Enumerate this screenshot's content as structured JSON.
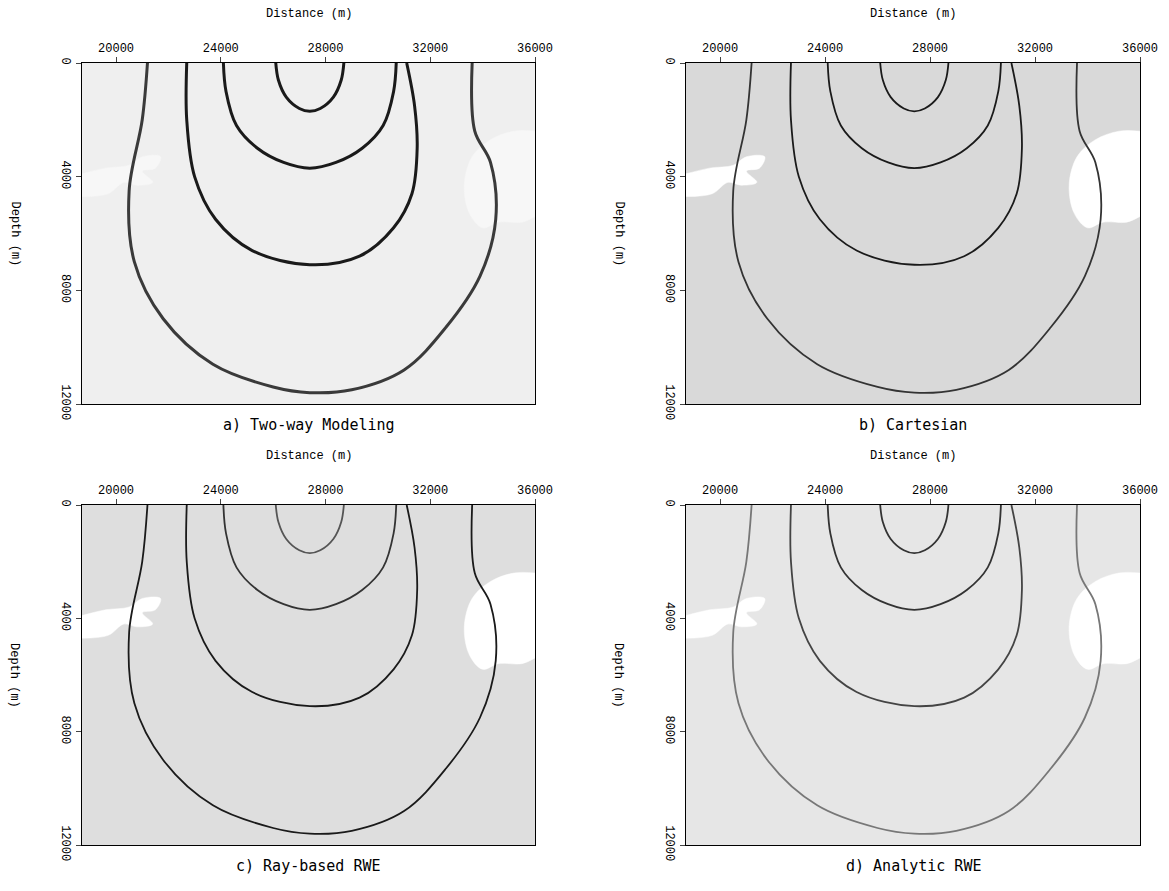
{
  "chart_data": [
    {
      "type": "line",
      "title": "a) Two-way Modeling",
      "x_label": "Distance (m)",
      "y_label": "Depth (m)",
      "xlim": [
        18700,
        36000
      ],
      "xticks": [
        20000,
        24000,
        28000,
        32000,
        36000
      ],
      "ylim": [
        12000,
        0
      ],
      "yticks": [
        0,
        4000,
        8000,
        12000
      ],
      "series": [
        {
          "type": "area",
          "color": "#f7f7f7",
          "x": [
            18700,
            19600,
            20500,
            21000,
            21700,
            21500,
            21000,
            21400,
            20800,
            20300,
            19700,
            18700
          ],
          "values": [
            3900,
            3700,
            3600,
            3300,
            3300,
            3700,
            3800,
            4200,
            4300,
            4200,
            4600,
            4700
          ]
        },
        {
          "type": "area",
          "color": "#f7f7f7",
          "x": [
            36000,
            35200,
            34300,
            33600,
            33300,
            33500,
            34000,
            34600,
            35500,
            36000
          ],
          "values": [
            2400,
            2400,
            2700,
            3300,
            4300,
            5300,
            5800,
            5600,
            5600,
            5400
          ]
        },
        {
          "type": "line",
          "color": "#1a1a1a",
          "x": [
            26100,
            26200,
            26500,
            27000,
            27400,
            27800,
            28300,
            28600,
            28700
          ],
          "values": [
            0,
            600,
            1200,
            1600,
            1700,
            1600,
            1200,
            600,
            0
          ]
        },
        {
          "type": "line",
          "color": "#1a1a1a",
          "x": [
            24100,
            24200,
            24600,
            25400,
            26400,
            27400,
            28400,
            29400,
            30200,
            30600,
            30700
          ],
          "values": [
            0,
            1000,
            2200,
            3000,
            3500,
            3700,
            3500,
            3000,
            2200,
            1000,
            0
          ]
        },
        {
          "type": "line",
          "color": "#1a1a1a",
          "x": [
            22700,
            22700,
            23000,
            23800,
            25200,
            27400,
            29300,
            30600,
            31300,
            31500,
            31400,
            31100
          ],
          "values": [
            0,
            2000,
            4000,
            5500,
            6600,
            7100,
            6800,
            5800,
            4600,
            3000,
            1500,
            0
          ]
        },
        {
          "type": "line",
          "color": "#3a3a3a",
          "x": [
            21200,
            21000,
            20500,
            20700,
            21800,
            23700,
            26000,
            27400,
            29000,
            31000,
            32600,
            33900,
            34500,
            34300,
            33700,
            33600
          ],
          "values": [
            0,
            2000,
            4500,
            7000,
            9000,
            10600,
            11400,
            11600,
            11500,
            10800,
            9300,
            7500,
            5500,
            3500,
            2400,
            0
          ]
        }
      ]
    },
    {
      "type": "line",
      "title": "b) Cartesian",
      "x_label": "Distance (m)",
      "y_label": "Depth (m)",
      "xlim": [
        18700,
        36000
      ],
      "xticks": [
        20000,
        24000,
        28000,
        32000,
        36000
      ],
      "ylim": [
        12000,
        0
      ],
      "yticks": [
        0,
        4000,
        8000,
        12000
      ],
      "series": [
        {
          "type": "area",
          "color": "#ffffff",
          "x": [
            18700,
            19600,
            20500,
            21000,
            21700,
            21500,
            21000,
            21400,
            20800,
            20300,
            19700,
            18700
          ],
          "values": [
            3900,
            3700,
            3600,
            3300,
            3300,
            3700,
            3800,
            4200,
            4300,
            4200,
            4600,
            4700
          ]
        },
        {
          "type": "area",
          "color": "#ffffff",
          "x": [
            36000,
            35200,
            34300,
            33600,
            33300,
            33500,
            34000,
            34600,
            35500,
            36000
          ],
          "values": [
            2400,
            2400,
            2700,
            3300,
            4300,
            5300,
            5800,
            5600,
            5600,
            5400
          ]
        },
        {
          "type": "line",
          "color": "#1a1a1a",
          "x": [
            26100,
            26200,
            26500,
            27000,
            27400,
            27800,
            28300,
            28600,
            28700
          ],
          "values": [
            0,
            600,
            1200,
            1600,
            1700,
            1600,
            1200,
            600,
            0
          ]
        },
        {
          "type": "line",
          "color": "#1a1a1a",
          "x": [
            24100,
            24200,
            24600,
            25400,
            26400,
            27400,
            28400,
            29400,
            30200,
            30600,
            30700
          ],
          "values": [
            0,
            1000,
            2200,
            3000,
            3500,
            3700,
            3500,
            3000,
            2200,
            1000,
            0
          ]
        },
        {
          "type": "line",
          "color": "#1a1a1a",
          "x": [
            22700,
            22700,
            23000,
            23800,
            25200,
            27400,
            29300,
            30600,
            31300,
            31500,
            31400,
            31100
          ],
          "values": [
            0,
            2000,
            4000,
            5500,
            6600,
            7100,
            6800,
            5800,
            4600,
            3000,
            1500,
            0
          ]
        },
        {
          "type": "line",
          "color": "#333333",
          "x": [
            21200,
            21000,
            20500,
            20700,
            21800,
            23700,
            26000,
            27400,
            29000,
            31000,
            32600,
            33900,
            34500,
            34300,
            33700,
            33600
          ],
          "values": [
            0,
            2000,
            4500,
            7000,
            9000,
            10600,
            11400,
            11600,
            11500,
            10800,
            9300,
            7500,
            5500,
            3500,
            2400,
            0
          ]
        }
      ]
    },
    {
      "type": "line",
      "title": "c) Ray-based RWE",
      "x_label": "Distance (m)",
      "y_label": "Depth (m)",
      "xlim": [
        18700,
        36000
      ],
      "xticks": [
        20000,
        24000,
        28000,
        32000,
        36000
      ],
      "ylim": [
        12000,
        0
      ],
      "yticks": [
        0,
        4000,
        8000,
        12000
      ],
      "series": [
        {
          "type": "area",
          "color": "#ffffff",
          "x": [
            18700,
            19600,
            20500,
            21000,
            21700,
            21500,
            21000,
            21400,
            20800,
            20300,
            19700,
            18700
          ],
          "values": [
            3900,
            3700,
            3600,
            3300,
            3300,
            3700,
            3800,
            4200,
            4300,
            4200,
            4600,
            4700
          ]
        },
        {
          "type": "area",
          "color": "#ffffff",
          "x": [
            36000,
            35200,
            34300,
            33600,
            33300,
            33500,
            34000,
            34600,
            35500,
            36000
          ],
          "values": [
            2400,
            2400,
            2700,
            3300,
            4300,
            5300,
            5800,
            5600,
            5600,
            5400
          ]
        },
        {
          "type": "line",
          "color": "#555555",
          "x": [
            26100,
            26200,
            26500,
            27000,
            27400,
            27800,
            28300,
            28600,
            28700
          ],
          "values": [
            0,
            600,
            1200,
            1600,
            1700,
            1600,
            1200,
            600,
            0
          ]
        },
        {
          "type": "line",
          "color": "#333333",
          "x": [
            24100,
            24200,
            24600,
            25400,
            26400,
            27400,
            28400,
            29400,
            30200,
            30600,
            30700
          ],
          "values": [
            0,
            1000,
            2200,
            3000,
            3500,
            3700,
            3500,
            3000,
            2200,
            1000,
            0
          ]
        },
        {
          "type": "line",
          "color": "#1a1a1a",
          "x": [
            22700,
            22700,
            23000,
            23800,
            25200,
            27400,
            29300,
            30600,
            31300,
            31500,
            31400,
            31100
          ],
          "values": [
            0,
            2000,
            4000,
            5500,
            6600,
            7100,
            6800,
            5800,
            4600,
            3000,
            1500,
            0
          ]
        },
        {
          "type": "line",
          "color": "#1a1a1a",
          "x": [
            21200,
            21000,
            20500,
            20700,
            21800,
            23700,
            26000,
            27400,
            29000,
            31000,
            32600,
            33900,
            34500,
            34300,
            33700,
            33600
          ],
          "values": [
            0,
            2000,
            4500,
            7000,
            9000,
            10600,
            11400,
            11600,
            11500,
            10800,
            9300,
            7500,
            5500,
            3500,
            2400,
            0
          ]
        }
      ]
    },
    {
      "type": "line",
      "title": "d) Analytic RWE",
      "x_label": "Distance (m)",
      "y_label": "Depth (m)",
      "xlim": [
        18700,
        36000
      ],
      "xticks": [
        20000,
        24000,
        28000,
        32000,
        36000
      ],
      "ylim": [
        12000,
        0
      ],
      "yticks": [
        0,
        4000,
        8000,
        12000
      ],
      "series": [
        {
          "type": "area",
          "color": "#ffffff",
          "x": [
            18700,
            19600,
            20500,
            21000,
            21700,
            21500,
            21000,
            21400,
            20800,
            20300,
            19700,
            18700
          ],
          "values": [
            3900,
            3700,
            3600,
            3300,
            3300,
            3700,
            3800,
            4200,
            4300,
            4200,
            4600,
            4700
          ]
        },
        {
          "type": "area",
          "color": "#ffffff",
          "x": [
            36000,
            35200,
            34300,
            33600,
            33300,
            33500,
            34000,
            34600,
            35500,
            36000
          ],
          "values": [
            2400,
            2400,
            2700,
            3300,
            4300,
            5300,
            5800,
            5600,
            5600,
            5400
          ]
        },
        {
          "type": "line",
          "color": "#333333",
          "x": [
            26100,
            26200,
            26500,
            27000,
            27400,
            27800,
            28300,
            28600,
            28700
          ],
          "values": [
            0,
            600,
            1200,
            1600,
            1700,
            1600,
            1200,
            600,
            0
          ]
        },
        {
          "type": "line",
          "color": "#333333",
          "x": [
            24100,
            24200,
            24600,
            25400,
            26400,
            27400,
            28400,
            29400,
            30200,
            30600,
            30700
          ],
          "values": [
            0,
            1000,
            2200,
            3000,
            3500,
            3700,
            3500,
            3000,
            2200,
            1000,
            0
          ]
        },
        {
          "type": "line",
          "color": "#444444",
          "x": [
            22700,
            22700,
            23000,
            23800,
            25200,
            27400,
            29300,
            30600,
            31300,
            31500,
            31400,
            31100
          ],
          "values": [
            0,
            2000,
            4000,
            5500,
            6600,
            7100,
            6800,
            5800,
            4600,
            3000,
            1500,
            0
          ]
        },
        {
          "type": "line",
          "color": "#777777",
          "x": [
            21200,
            21000,
            20500,
            20700,
            21800,
            23700,
            26000,
            27400,
            29000,
            31000,
            32600,
            33900,
            34500,
            34300,
            33700,
            33600
          ],
          "values": [
            0,
            2000,
            4500,
            7000,
            9000,
            10600,
            11400,
            11600,
            11500,
            10800,
            9300,
            7500,
            5500,
            3500,
            2400,
            0
          ]
        }
      ]
    }
  ]
}
